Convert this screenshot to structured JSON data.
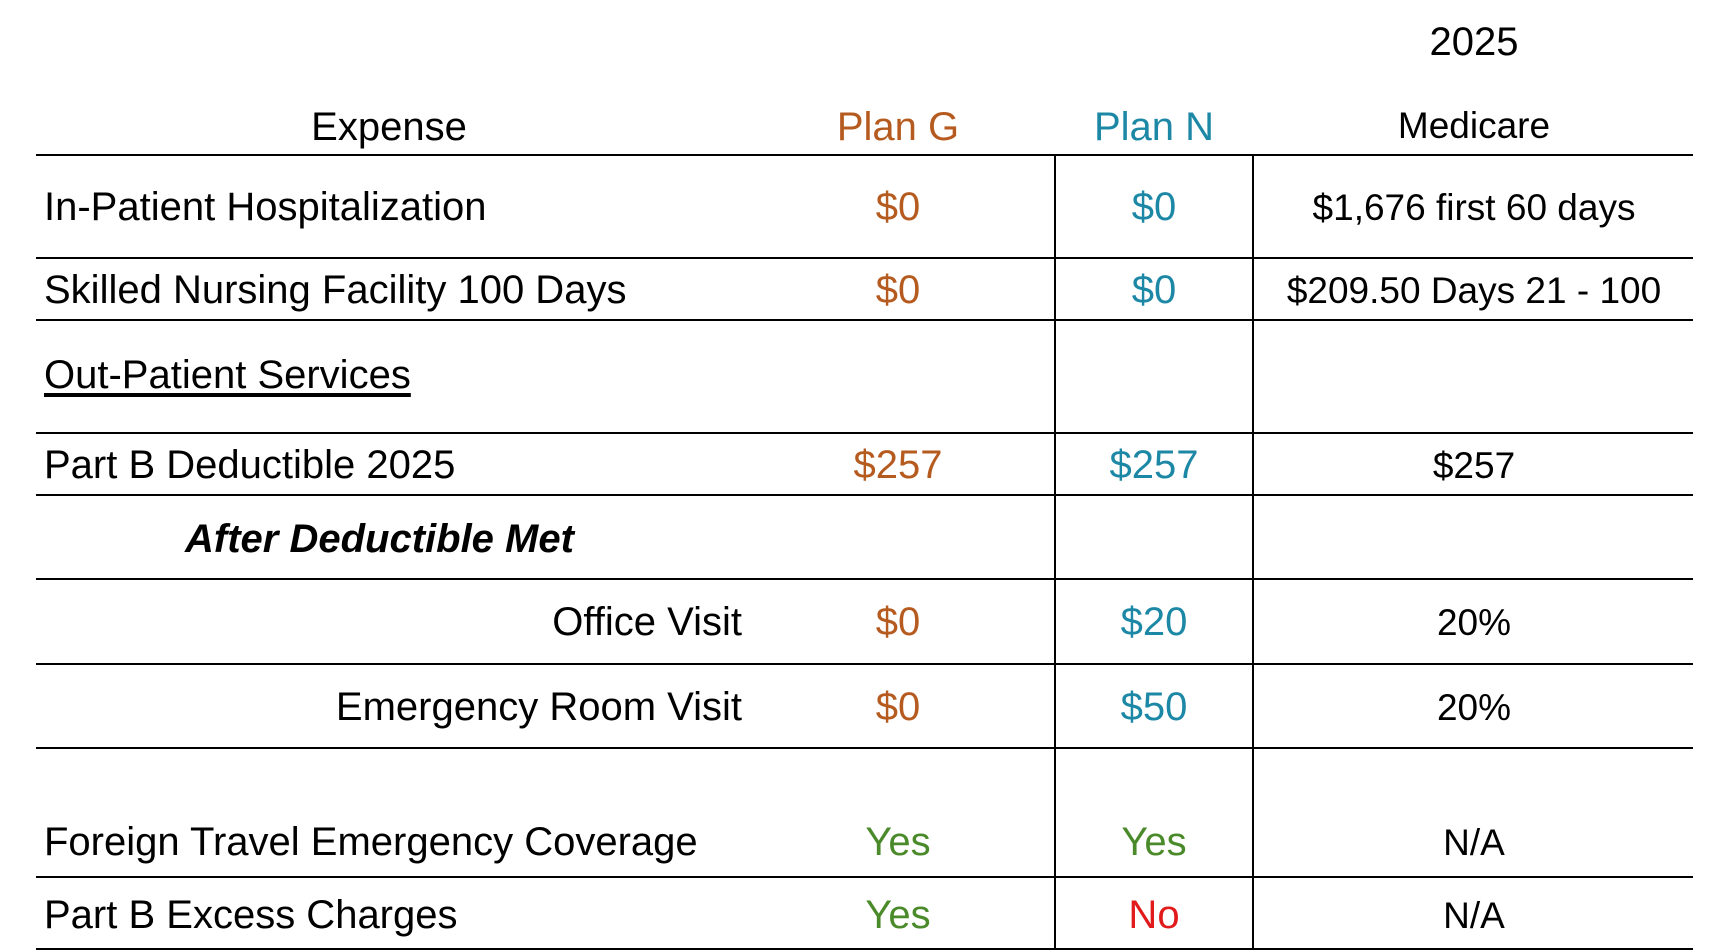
{
  "header": {
    "year": "2025",
    "expense_label": "Expense",
    "plan_g_label": "Plan G",
    "plan_n_label": "Plan N",
    "medicare_label": "Medicare"
  },
  "colors": {
    "plan_g": "#b65b1f",
    "plan_n": "#1c88a6",
    "yes": "#4a8a2a",
    "no": "#e11b1b",
    "text": "#000000"
  },
  "rows": [
    {
      "expense": "In-Patient Hospitalization",
      "plan_g": "$0",
      "plan_n": "$0",
      "medicare": "$1,676 first 60 days"
    },
    {
      "expense": "Skilled Nursing Facility 100 Days",
      "plan_g": "$0",
      "plan_n": "$0",
      "medicare": "$209.50 Days 21 - 100"
    },
    {
      "expense": "Out-Patient Services",
      "plan_g": "",
      "plan_n": "",
      "medicare": ""
    },
    {
      "expense": "Part B Deductible 2025",
      "plan_g": "$257",
      "plan_n": "$257",
      "medicare": "$257"
    },
    {
      "expense": "After Deductible Met",
      "plan_g": "",
      "plan_n": "",
      "medicare": ""
    },
    {
      "expense": "Office Visit",
      "plan_g": "$0",
      "plan_n": "$20",
      "medicare": "20%"
    },
    {
      "expense": "Emergency Room Visit",
      "plan_g": "$0",
      "plan_n": "$50",
      "medicare": "20%"
    },
    {
      "expense": "Foreign Travel  Emergency Coverage",
      "plan_g": "Yes",
      "plan_n": "Yes",
      "medicare": "N/A"
    },
    {
      "expense": "Part B Excess Charges",
      "plan_g": "Yes",
      "plan_n": "No",
      "medicare": "N/A"
    }
  ]
}
